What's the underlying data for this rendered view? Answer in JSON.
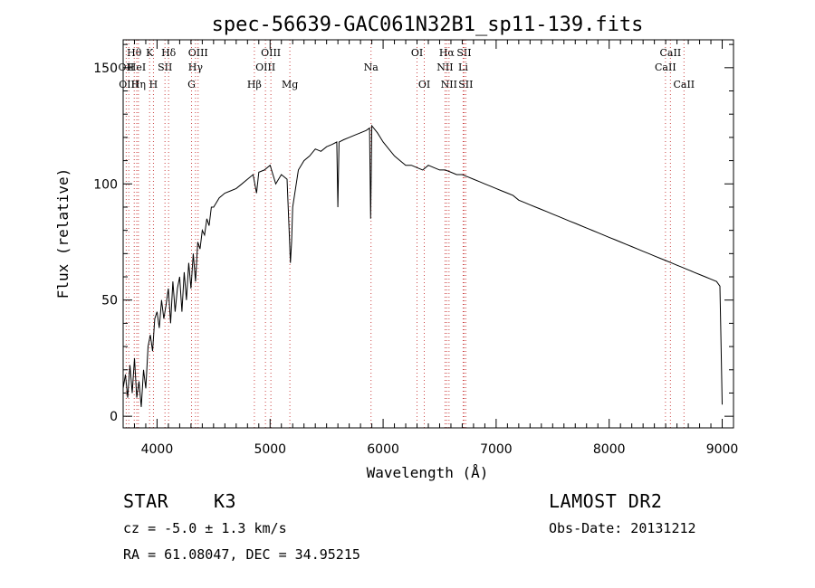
{
  "chart_data": {
    "type": "line",
    "title": "spec-56639-GAC061N32B1_sp11-139.fits",
    "xlabel": "Wavelength (Å)",
    "ylabel": "Flux (relative)",
    "xlim": [
      3700,
      9100
    ],
    "ylim": [
      -5,
      162
    ],
    "x_ticks": [
      "4000",
      "5000",
      "6000",
      "7000",
      "8000",
      "9000"
    ],
    "y_ticks": [
      "0",
      "50",
      "100",
      "150"
    ],
    "grid": false,
    "series": [
      {
        "values_x": [
          3700,
          3720,
          3740,
          3760,
          3780,
          3800,
          3820,
          3840,
          3860,
          3880,
          3900,
          3920,
          3940,
          3960,
          3980,
          4000,
          4020,
          4040,
          4060,
          4080,
          4100,
          4120,
          4140,
          4160,
          4180,
          4200,
          4220,
          4240,
          4260,
          4280,
          4300,
          4320,
          4340,
          4360,
          4380,
          4400,
          4420,
          4440,
          4460,
          4480,
          4500,
          4550,
          4600,
          4650,
          4700,
          4750,
          4800,
          4850,
          4880,
          4900,
          4950,
          5000,
          5050,
          5100,
          5150,
          5170,
          5180,
          5190,
          5200,
          5250,
          5300,
          5350,
          5400,
          5450,
          5500,
          5550,
          5590,
          5600,
          5610,
          5650,
          5700,
          5750,
          5800,
          5850,
          5880,
          5890,
          5900,
          5950,
          6000,
          6050,
          6100,
          6150,
          6200,
          6250,
          6300,
          6350,
          6400,
          6450,
          6500,
          6550,
          6600,
          6650,
          6700,
          6750,
          6800,
          6850,
          6900,
          6950,
          7000,
          7050,
          7100,
          7150,
          7200,
          7250,
          7300,
          7350,
          7400,
          7450,
          7500,
          7550,
          7600,
          7650,
          7700,
          7750,
          7800,
          7850,
          7900,
          7950,
          8000,
          8050,
          8100,
          8150,
          8200,
          8250,
          8300,
          8350,
          8400,
          8450,
          8500,
          8550,
          8600,
          8650,
          8700,
          8750,
          8800,
          8850,
          8900,
          8950,
          8980,
          8990,
          9000
        ],
        "values_y": [
          12,
          18,
          8,
          22,
          10,
          25,
          8,
          15,
          4,
          20,
          12,
          30,
          35,
          28,
          42,
          45,
          38,
          50,
          42,
          48,
          55,
          40,
          58,
          45,
          55,
          60,
          45,
          62,
          50,
          66,
          55,
          70,
          58,
          75,
          72,
          80,
          78,
          85,
          82,
          90,
          90,
          94,
          96,
          97,
          98,
          100,
          102,
          104,
          96,
          105,
          106,
          108,
          100,
          104,
          102,
          78,
          66,
          75,
          90,
          106,
          110,
          112,
          115,
          114,
          116,
          117,
          118,
          90,
          118,
          119,
          120,
          121,
          122,
          123,
          124,
          85,
          125,
          122,
          118,
          115,
          112,
          110,
          108,
          108,
          107,
          106,
          108,
          107,
          106,
          106,
          105,
          104,
          104,
          103,
          102,
          101,
          100,
          99,
          98,
          97,
          96,
          95,
          93,
          92,
          91,
          90,
          89,
          88,
          87,
          86,
          85,
          84,
          83,
          82,
          81,
          80,
          79,
          78,
          77,
          76,
          75,
          74,
          73,
          72,
          71,
          70,
          69,
          68,
          67,
          66,
          65,
          64,
          63,
          62,
          61,
          60,
          59,
          58,
          56,
          30,
          5
        ]
      }
    ],
    "lines": [
      {
        "label": "Hθ",
        "x": 3798,
        "row": 1
      },
      {
        "label": "OII",
        "x": 3727,
        "row": 2
      },
      {
        "label": "OIII",
        "x": 3750,
        "row": 3
      },
      {
        "label": "Hη",
        "x": 3835,
        "row": 3
      },
      {
        "label": "HeI",
        "x": 3820,
        "row": 2
      },
      {
        "label": "K",
        "x": 3934,
        "row": 1
      },
      {
        "label": "SII",
        "x": 4070,
        "row": 2
      },
      {
        "label": "H",
        "x": 3968,
        "row": 3
      },
      {
        "label": "Hδ",
        "x": 4102,
        "row": 1
      },
      {
        "label": "OIII",
        "x": 4363,
        "row": 1
      },
      {
        "label": "Hγ",
        "x": 4340,
        "row": 2
      },
      {
        "label": "G",
        "x": 4305,
        "row": 3
      },
      {
        "label": "OIII",
        "x": 5007,
        "row": 1
      },
      {
        "label": "OIII",
        "x": 4959,
        "row": 2
      },
      {
        "label": "Hβ",
        "x": 4861,
        "row": 3
      },
      {
        "label": "Mg",
        "x": 5175,
        "row": 3
      },
      {
        "label": "Na",
        "x": 5893,
        "row": 2
      },
      {
        "label": "OI",
        "x": 6300,
        "row": 1
      },
      {
        "label": "OI",
        "x": 6364,
        "row": 3
      },
      {
        "label": "Hα",
        "x": 6563,
        "row": 1
      },
      {
        "label": "SII",
        "x": 6716,
        "row": 1
      },
      {
        "label": "NII",
        "x": 6548,
        "row": 2
      },
      {
        "label": "Li",
        "x": 6708,
        "row": 2
      },
      {
        "label": "NII",
        "x": 6583,
        "row": 3
      },
      {
        "label": "SII",
        "x": 6731,
        "row": 3
      },
      {
        "label": "CaII",
        "x": 8542,
        "row": 1
      },
      {
        "label": "CaII",
        "x": 8498,
        "row": 2
      },
      {
        "label": "CaII",
        "x": 8662,
        "row": 3
      }
    ]
  },
  "info": {
    "class": "STAR",
    "subclass": "K3",
    "survey": "LAMOST DR2",
    "cz": "cz = -5.0 ± 1.3 km/s",
    "obs_date": "Obs-Date: 20131212",
    "coords": "RA =  61.08047, DEC =  34.95215"
  }
}
